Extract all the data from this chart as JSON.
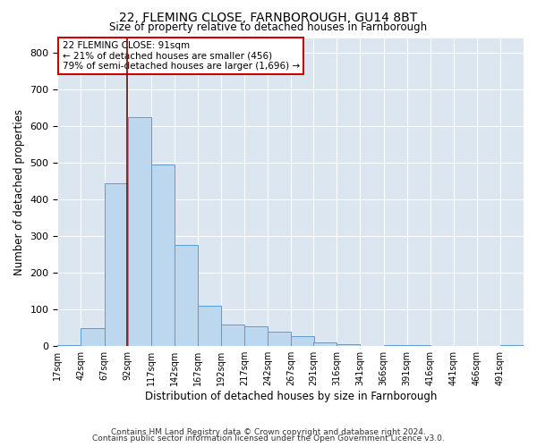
{
  "title1": "22, FLEMING CLOSE, FARNBOROUGH, GU14 8BT",
  "title2": "Size of property relative to detached houses in Farnborough",
  "xlabel": "Distribution of detached houses by size in Farnborough",
  "ylabel": "Number of detached properties",
  "footnote1": "Contains HM Land Registry data © Crown copyright and database right 2024.",
  "footnote2": "Contains public sector information licensed under the Open Government Licence v3.0.",
  "bar_color": "#bdd7ee",
  "bar_edge_color": "#5b9bd5",
  "background_color": "#dce6f1",
  "grid_color": "#ffffff",
  "vline_x": 91,
  "vline_color": "#8B0000",
  "annotation_line1": "22 FLEMING CLOSE: 91sqm",
  "annotation_line2": "← 21% of detached houses are smaller (456)",
  "annotation_line3": "79% of semi-detached houses are larger (1,696) →",
  "annotation_box_color": "#ffffff",
  "annotation_border_color": "#cc0000",
  "bin_edges": [
    17,
    42,
    67,
    92,
    117,
    142,
    167,
    192,
    217,
    242,
    267,
    291,
    316,
    341,
    366,
    391,
    416,
    441,
    466,
    491,
    516
  ],
  "bar_heights": [
    3,
    50,
    445,
    625,
    495,
    275,
    110,
    60,
    55,
    40,
    28,
    10,
    5,
    0,
    3,
    3,
    0,
    0,
    0,
    3
  ],
  "ylim": [
    0,
    840
  ],
  "yticks": [
    0,
    100,
    200,
    300,
    400,
    500,
    600,
    700,
    800
  ]
}
